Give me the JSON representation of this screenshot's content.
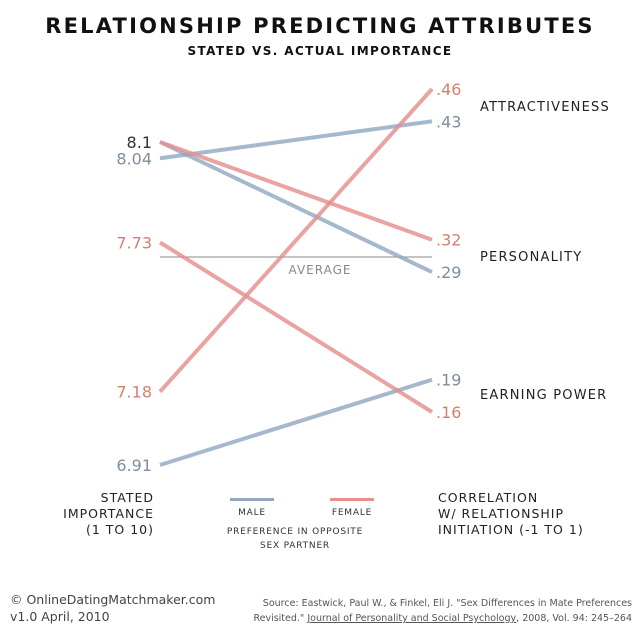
{
  "header": {
    "title": "RELATIONSHIP PREDICTING ATTRIBUTES",
    "subtitle": "STATED VS. ACTUAL IMPORTANCE"
  },
  "colors": {
    "male": "#93a8c0",
    "female": "#e58f8f",
    "male_text": "#7d8ea3",
    "female_text": "#d4806f",
    "average_line": "#888888"
  },
  "chart_data": {
    "type": "line",
    "left_axis": {
      "title_lines": [
        "STATED",
        "IMPORTANCE",
        "(1 TO 10)"
      ],
      "ylim": [
        6.91,
        8.1
      ]
    },
    "right_axis": {
      "title_lines": [
        "CORRELATION",
        "W/ RELATIONSHIP",
        "INITIATION (-1 TO 1)"
      ],
      "ylim": [
        0.16,
        0.46
      ]
    },
    "average_label": "AVERAGE",
    "categories": [
      "ATTRACTIVENESS",
      "PERSONALITY",
      "EARNING POWER"
    ],
    "series": [
      {
        "name": "MALE",
        "colorKey": "male",
        "points": [
          {
            "category": "ATTRACTIVENESS",
            "stated": 8.04,
            "stated_label": "8.04",
            "actual": 0.43,
            "actual_label": ".43"
          },
          {
            "category": "PERSONALITY",
            "stated": 8.1,
            "stated_label": "8.1",
            "actual": 0.29,
            "actual_label": ".29"
          },
          {
            "category": "EARNING POWER",
            "stated": 6.91,
            "stated_label": "6.91",
            "actual": 0.19,
            "actual_label": ".19"
          }
        ]
      },
      {
        "name": "FEMALE",
        "colorKey": "female",
        "points": [
          {
            "category": "ATTRACTIVENESS",
            "stated": 7.18,
            "stated_label": "7.18",
            "actual": 0.46,
            "actual_label": ".46"
          },
          {
            "category": "PERSONALITY",
            "stated": 8.1,
            "stated_label": "8.1",
            "actual": 0.32,
            "actual_label": ".32"
          },
          {
            "category": "EARNING POWER",
            "stated": 7.73,
            "stated_label": "7.73",
            "actual": 0.16,
            "actual_label": ".16"
          }
        ]
      }
    ],
    "legend": {
      "male_label": "MALE",
      "female_label": "FEMALE",
      "caption_lines": [
        "PREFERENCE IN OPPOSITE",
        "SEX PARTNER"
      ]
    }
  },
  "footer": {
    "copyright": "© OnlineDatingMatchmaker.com",
    "version": "v1.0 April, 2010",
    "source_line1": "Source:  Eastwick, Paul W., & Finkel, Eli J. \"Sex Differences in Mate Preferences",
    "source_line2_prefix": "Revisited.\" ",
    "source_journal": "Journal of Personality and Social Psychology",
    "source_line2_suffix": ", 2008, Vol. 94: 245–264"
  }
}
